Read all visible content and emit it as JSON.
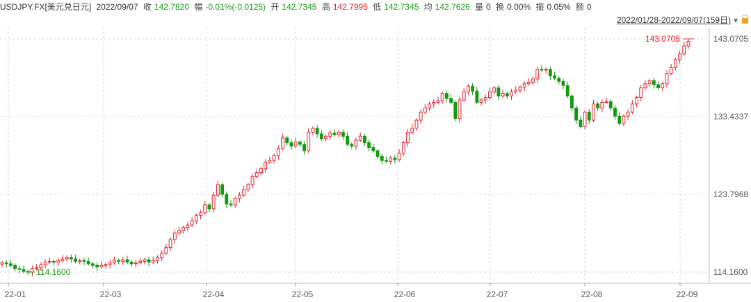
{
  "header": {
    "symbol": "USDJPY.FX[美元兑日元]",
    "date": "2022/09/07",
    "close_label": "收",
    "close": "142.7820",
    "change_label": "幅",
    "change": "-0.01%(-0.0125)",
    "open_label": "开",
    "open": "142.7345",
    "high_label": "高",
    "high": "142.7995",
    "low_label": "低",
    "low": "142.7345",
    "avg_label": "均",
    "avg": "142.7626",
    "volume_label": "量",
    "volume": "0",
    "turnover_label": "换",
    "turnover": "0.00%",
    "amplitude_label": "振",
    "amplitude": "0.05%",
    "amount_label": "额",
    "amount": "0"
  },
  "range": {
    "text": "2022/01/28-2022/09/07(159日)",
    "caret_icon": "triangle-down-icon",
    "lock_icon": "lock-icon"
  },
  "colors": {
    "up": "#e8202a",
    "down": "#139a13",
    "grid": "#d7d7d7",
    "axis_text": "#555555"
  },
  "chart_data": {
    "type": "candlestick",
    "y_ticks": [
      "143.0705",
      "133.4337",
      "123.7968",
      "114.1600"
    ],
    "y_tick_values": [
      143.0705,
      133.4337,
      123.7968,
      114.16
    ],
    "ylim": [
      114.16,
      143.0705
    ],
    "x_ticks": [
      "22-01",
      "22-03",
      "22-04",
      "22-05",
      "22-06",
      "22-07",
      "22-08",
      "22-09"
    ],
    "max_label": "143.0705",
    "min_label": "114.1600",
    "closes": [
      115.3,
      115.2,
      115.0,
      114.6,
      114.5,
      114.25,
      114.16,
      114.6,
      114.7,
      115.1,
      115.4,
      115.5,
      115.4,
      115.6,
      115.8,
      116.0,
      115.8,
      115.5,
      115.6,
      115.5,
      115.2,
      115.0,
      114.8,
      115.0,
      115.1,
      115.3,
      115.6,
      115.5,
      115.7,
      115.4,
      115.2,
      115.3,
      115.5,
      115.7,
      115.4,
      115.6,
      116.0,
      116.5,
      117.2,
      118.2,
      119.0,
      119.3,
      119.7,
      120.0,
      120.5,
      121.2,
      121.5,
      122.5,
      122.0,
      123.7,
      125.0,
      123.8,
      122.6,
      122.5,
      123.3,
      123.7,
      124.4,
      125.0,
      126.0,
      126.5,
      127.0,
      127.8,
      128.0,
      128.6,
      129.5,
      130.8,
      130.2,
      129.8,
      130.3,
      130.0,
      129.2,
      131.5,
      132.0,
      131.3,
      130.7,
      131.0,
      131.4,
      131.2,
      131.5,
      131.0,
      130.0,
      129.8,
      130.5,
      131.0,
      130.2,
      129.6,
      129.2,
      128.5,
      128.0,
      127.9,
      128.3,
      128.1,
      128.9,
      130.2,
      131.5,
      132.0,
      133.0,
      134.0,
      134.5,
      135.0,
      135.2,
      135.4,
      136.3,
      135.7,
      135.2,
      133.2,
      135.5,
      136.5,
      137.2,
      136.6,
      135.2,
      135.5,
      135.8,
      136.5,
      137.0,
      136.0,
      136.3,
      136.0,
      136.5,
      136.7,
      137.1,
      137.5,
      137.7,
      138.1,
      139.3,
      139.2,
      139.3,
      138.5,
      138.2,
      137.8,
      137.3,
      136.0,
      134.5,
      133.0,
      132.2,
      134.0,
      133.0,
      135.0,
      134.5,
      135.2,
      135.3,
      134.5,
      133.5,
      132.6,
      133.5,
      134.0,
      135.0,
      135.8,
      137.0,
      137.5,
      137.9,
      137.4,
      137.0,
      137.5,
      138.8,
      139.5,
      140.5,
      141.2,
      142.2,
      142.78
    ]
  }
}
